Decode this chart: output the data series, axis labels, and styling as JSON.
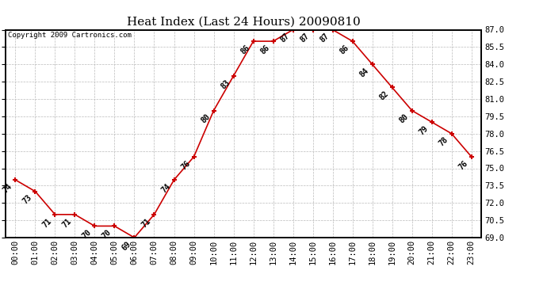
{
  "title": "Heat Index (Last 24 Hours) 20090810",
  "copyright": "Copyright 2009 Cartronics.com",
  "hours": [
    "00:00",
    "01:00",
    "02:00",
    "03:00",
    "04:00",
    "05:00",
    "06:00",
    "07:00",
    "08:00",
    "09:00",
    "10:00",
    "11:00",
    "12:00",
    "13:00",
    "14:00",
    "15:00",
    "16:00",
    "17:00",
    "18:00",
    "19:00",
    "20:00",
    "21:00",
    "22:00",
    "23:00"
  ],
  "values": [
    74,
    73,
    71,
    71,
    70,
    70,
    69,
    71,
    74,
    76,
    80,
    83,
    86,
    86,
    87,
    87,
    87,
    86,
    84,
    82,
    80,
    79,
    78,
    76
  ],
  "ylim_min": 69.0,
  "ylim_max": 87.0,
  "line_color": "#cc0000",
  "marker_color": "#cc0000",
  "bg_color": "#ffffff",
  "grid_color": "#bbbbbb",
  "title_fontsize": 11,
  "label_fontsize": 7,
  "tick_fontsize": 7.5,
  "copyright_fontsize": 6.5,
  "yticks": [
    69.0,
    70.5,
    72.0,
    73.5,
    75.0,
    76.5,
    78.0,
    79.5,
    81.0,
    82.5,
    84.0,
    85.5,
    87.0
  ]
}
